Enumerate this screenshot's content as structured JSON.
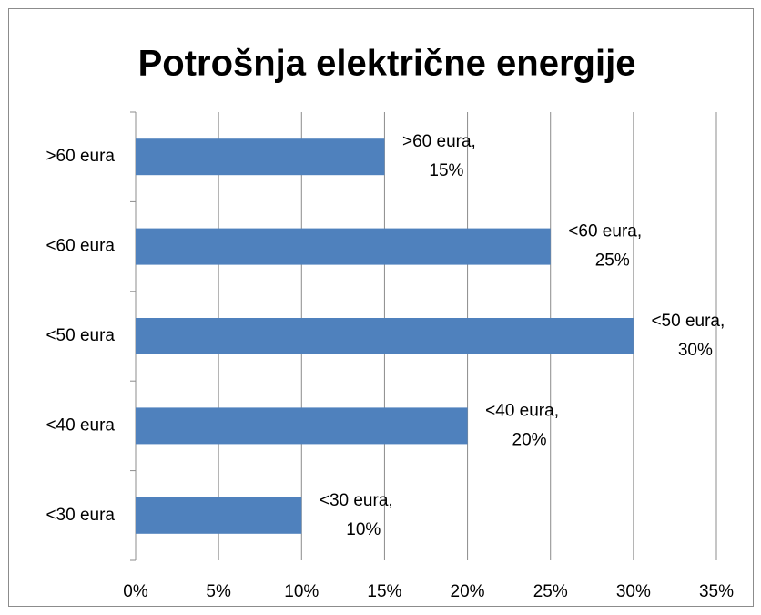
{
  "chart_data": {
    "type": "bar",
    "orientation": "horizontal",
    "title": "Potrošnja električne energije",
    "categories": [
      ">60 eura",
      "<60 eura",
      "<50 eura",
      "<40 eura",
      "<30 eura"
    ],
    "values": [
      15,
      25,
      30,
      20,
      10
    ],
    "value_labels": [
      ">60 eura, 15%",
      "<60 eura, 25%",
      "<50 eura, 30%",
      "<40 eura, 20%",
      "<30 eura, 10%"
    ],
    "color": "#4f81bd",
    "xlim": [
      0,
      35
    ],
    "xticks": [
      {
        "value": 0,
        "label": "0%"
      },
      {
        "value": 5,
        "label": "5%"
      },
      {
        "value": 10,
        "label": "10%"
      },
      {
        "value": 15,
        "label": "15%"
      },
      {
        "value": 20,
        "label": "20%"
      },
      {
        "value": 25,
        "label": "25%"
      },
      {
        "value": 30,
        "label": "30%"
      },
      {
        "value": 35,
        "label": "35%"
      }
    ],
    "grid": true
  }
}
